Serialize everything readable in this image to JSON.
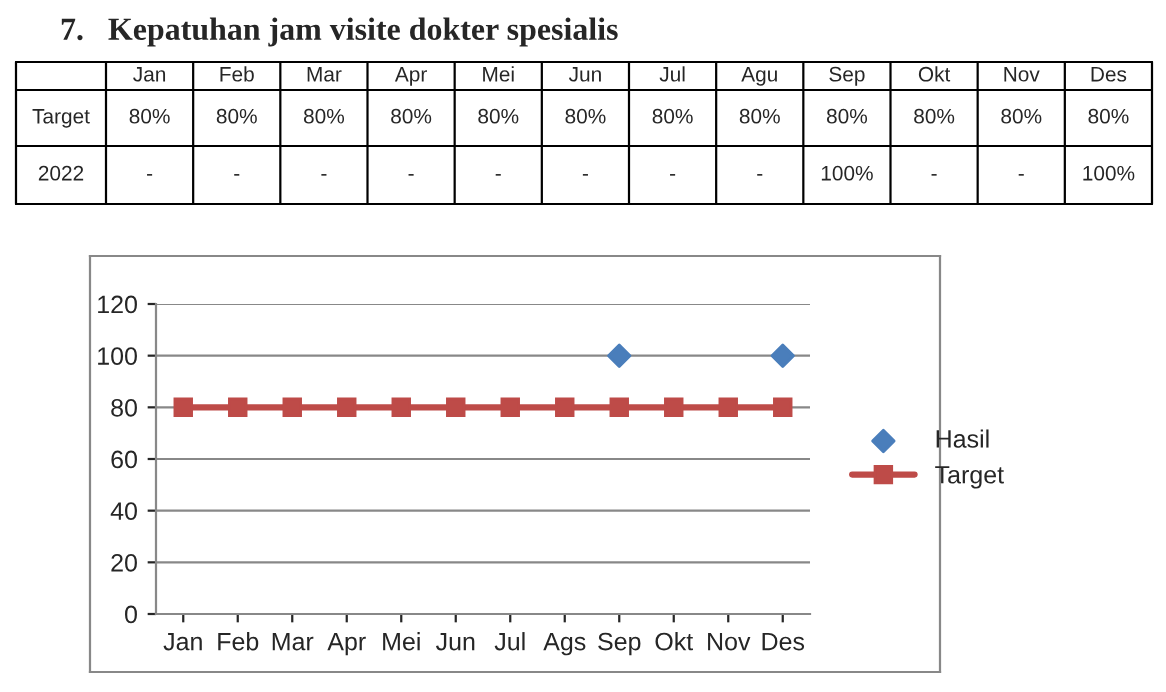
{
  "chart_data": {
    "type": "line",
    "title": "7.   Kepatuhan jam visite dokter spesialis",
    "categories": [
      "Jan",
      "Feb",
      "Mar",
      "Apr",
      "Mei",
      "Jun",
      "Jul",
      "Ags",
      "Sep",
      "Okt",
      "Nov",
      "Des"
    ],
    "series": [
      {
        "name": "Hasil",
        "type": "scatter",
        "color": "#4a7ebb",
        "marker": "diamond",
        "values": [
          null,
          null,
          null,
          null,
          null,
          null,
          null,
          null,
          100,
          null,
          null,
          100
        ]
      },
      {
        "name": "Target",
        "color": "#be4b48",
        "marker": "square",
        "values": [
          80,
          80,
          80,
          80,
          80,
          80,
          80,
          80,
          80,
          80,
          80,
          80
        ]
      }
    ],
    "ylim": [
      0,
      120
    ],
    "yticks": [
      0,
      20,
      40,
      60,
      80,
      100,
      120
    ],
    "grid": "y",
    "legend": "right",
    "annotations": [
      "Jan",
      "Feb",
      "Mar",
      "Apr",
      "Mei",
      "Jun",
      "Jul",
      "Agu",
      "Sep",
      "Okt",
      "Nov",
      "Des",
      "Target",
      "80%",
      "80%",
      "80%",
      "80%",
      "80%",
      "80%",
      "80%",
      "80%",
      "80%",
      "80%",
      "80%",
      "80%",
      "2022",
      "-",
      "-",
      "-",
      "-",
      "-",
      "-",
      "-",
      "-",
      "100%",
      "-",
      "-",
      "100%"
    ]
  }
}
